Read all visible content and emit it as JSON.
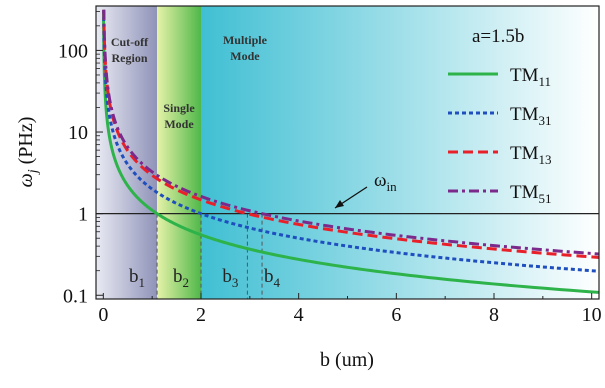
{
  "chart_data": {
    "type": "line",
    "title": "",
    "xlabel": "b (um)",
    "ylabel": "ω_j (PHz)",
    "ylabel_main": "ω",
    "ylabel_sub": "j",
    "ylabel_unit": " (PHz)",
    "xlim": [
      -0.15,
      10.15
    ],
    "ylim": [
      0.09,
      350
    ],
    "yscale": "log",
    "x_ticks": [
      "0",
      "2",
      "4",
      "6",
      "8",
      "10"
    ],
    "y_ticks": [
      "0.1",
      "1",
      "10",
      "100"
    ],
    "legend_title": "a=1.5b",
    "legend_position": "right",
    "series": [
      {
        "name": "TM11",
        "name_main": "TM",
        "name_sub": "11",
        "color": "#2db34a",
        "dash": "solid",
        "coef": 1.1,
        "x": [
          0.0035,
          0.05,
          0.2,
          0.5,
          1.0,
          1.1,
          2.0,
          3.0,
          4.0,
          6.0,
          8.0,
          10.0
        ],
        "y": [
          314,
          22.0,
          5.5,
          2.2,
          1.1,
          1.0,
          0.55,
          0.367,
          0.275,
          0.183,
          0.1375,
          0.11
        ]
      },
      {
        "name": "TM31",
        "name_main": "TM",
        "name_sub": "31",
        "color": "#1f4fbf",
        "dash": "dotted",
        "coef": 2.0,
        "x": [
          0.0064,
          0.05,
          0.2,
          0.5,
          1.0,
          2.0,
          3.0,
          4.0,
          6.0,
          8.0,
          10.0
        ],
        "y": [
          314,
          40.0,
          10.0,
          4.0,
          2.0,
          1.0,
          0.667,
          0.5,
          0.333,
          0.25,
          0.2
        ]
      },
      {
        "name": "TM13",
        "name_main": "TM",
        "name_sub": "13",
        "color": "#e8202a",
        "dash": "dashed",
        "coef": 2.95,
        "x": [
          0.0094,
          0.05,
          0.2,
          0.5,
          1.0,
          2.0,
          2.95,
          4.0,
          6.0,
          8.0,
          10.0
        ],
        "y": [
          314,
          59.0,
          14.75,
          5.9,
          2.95,
          1.475,
          1.0,
          0.7375,
          0.492,
          0.369,
          0.295
        ]
      },
      {
        "name": "TM51",
        "name_main": "TM",
        "name_sub": "51",
        "color": "#7b2a8c",
        "dash": "dashdot",
        "coef": 3.25,
        "x": [
          0.0103,
          0.05,
          0.2,
          0.5,
          1.0,
          2.0,
          3.25,
          4.0,
          6.0,
          8.0,
          10.0
        ],
        "y": [
          314,
          65.0,
          16.25,
          6.5,
          3.25,
          1.625,
          1.0,
          0.8125,
          0.542,
          0.406,
          0.325
        ]
      }
    ],
    "reference_line": {
      "y": 1,
      "label_main": "ω",
      "label_sub": "in"
    },
    "regions": [
      {
        "name": "Cut-off Region",
        "lines": [
          "Cut-off",
          "Region"
        ],
        "x_start": -0.15,
        "x_end": 1.1
      },
      {
        "name": "Single Mode",
        "lines": [
          "Single",
          "Mode"
        ],
        "x_start": 1.1,
        "x_end": 2.0
      },
      {
        "name": "Multiple Mode",
        "lines": [
          "Multiple",
          "Mode"
        ],
        "x_start": 2.0,
        "x_end": 10.15
      }
    ],
    "markers": [
      {
        "label_main": "b",
        "label_sub": "1",
        "x": 1.1
      },
      {
        "label_main": "b",
        "label_sub": "2",
        "x": 2.0
      },
      {
        "label_main": "b",
        "label_sub": "3",
        "x": 2.95
      },
      {
        "label_main": "b",
        "label_sub": "4",
        "x": 3.25
      }
    ],
    "grid": false
  }
}
